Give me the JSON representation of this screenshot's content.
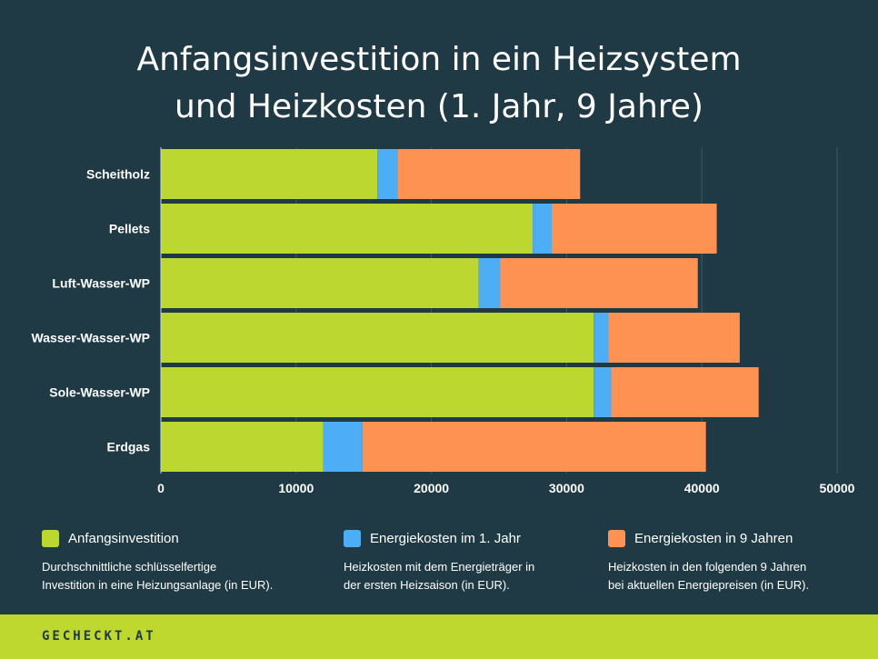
{
  "title_line1": "Anfangsinvestition in ein Heizsystem",
  "title_line2": "und Heizkosten (1. Jahr, 9 Jahre)",
  "colors": {
    "background": "#1f3a44",
    "investment": "#bdd731",
    "year1": "#4eaef5",
    "year9": "#fe9252",
    "footer": "#bfd830"
  },
  "chart_data": {
    "type": "bar",
    "orientation": "horizontal",
    "stacked": true,
    "categories": [
      "Scheitholz",
      "Pellets",
      "Luft-Wasser-WP",
      "Wasser-Wasser-WP",
      "Sole-Wasser-WP",
      "Erdgas"
    ],
    "series": [
      {
        "name": "Anfangsinvestition",
        "values": [
          16000,
          27500,
          23500,
          32000,
          32000,
          12000
        ]
      },
      {
        "name": "Energiekosten im 1. Jahr",
        "values": [
          1500,
          1400,
          1600,
          1100,
          1300,
          2900
        ]
      },
      {
        "name": "Energiekosten in 9 Jahren",
        "values": [
          13500,
          12200,
          14600,
          9700,
          10900,
          25400
        ]
      }
    ],
    "xlim": [
      0,
      50000
    ],
    "x_ticks": [
      "0",
      "10000",
      "20000",
      "30000",
      "40000",
      "50000"
    ],
    "grid": true
  },
  "legend": [
    {
      "label": "Anfangsinvestition",
      "desc1": "Durchschnittliche schlüsselfertige",
      "desc2": "Investition in eine Heizungsanlage (in EUR)."
    },
    {
      "label": "Energiekosten im 1. Jahr",
      "desc1": "Heizkosten mit dem Energieträger in",
      "desc2": "der ersten Heizsaison (in EUR)."
    },
    {
      "label": "Energiekosten in 9 Jahren",
      "desc1": "Heizkosten in den folgenden 9 Jahren",
      "desc2": "bei aktuellen Energiepreisen (in EUR)."
    }
  ],
  "footer": {
    "logo": "GECHECKT.AT"
  }
}
